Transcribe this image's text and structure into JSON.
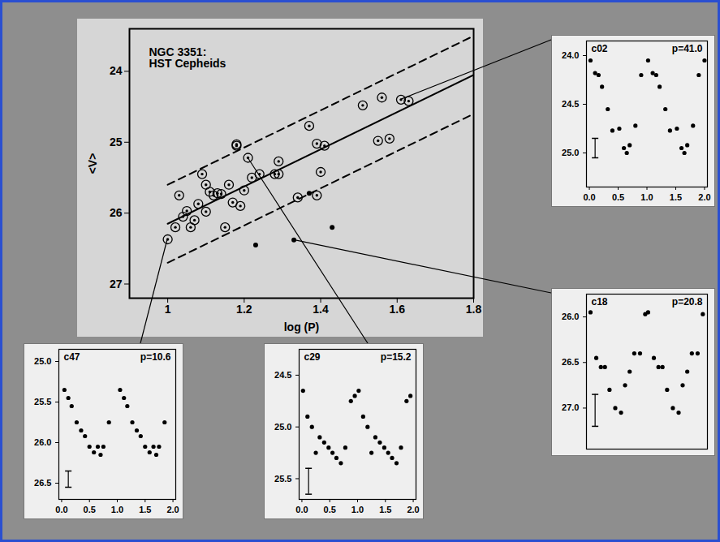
{
  "chart_data": [
    {
      "type": "scatter",
      "title": "NGC 3351: HST Cepheids",
      "x_label": "log (P)",
      "y_label": "<V>",
      "xlim": [
        0.9,
        1.8
      ],
      "xticks": [
        1,
        1.2,
        1.4,
        1.6,
        1.8
      ],
      "ylim": [
        27.2,
        23.4
      ],
      "yticks": [
        24,
        25,
        26,
        27
      ],
      "grid": false,
      "series": [
        {
          "type": "scatter",
          "marker": "circled",
          "color": "black",
          "x": [
            1.0,
            1.02,
            1.03,
            1.04,
            1.05,
            1.06,
            1.07,
            1.08,
            1.09,
            1.1,
            1.1,
            1.11,
            1.12,
            1.13,
            1.14,
            1.15,
            1.16,
            1.17,
            1.18,
            1.18,
            1.19,
            1.2,
            1.21,
            1.22,
            1.24,
            1.28,
            1.29,
            1.29,
            1.34,
            1.37,
            1.39,
            1.39,
            1.4,
            1.41,
            1.51,
            1.55,
            1.56,
            1.58,
            1.61,
            1.63
          ],
          "values": [
            26.37,
            26.2,
            25.75,
            26.05,
            25.97,
            26.2,
            26.1,
            25.87,
            25.45,
            25.6,
            25.98,
            25.7,
            25.75,
            25.72,
            25.73,
            26.2,
            25.6,
            25.85,
            25.03,
            25.05,
            25.9,
            25.68,
            25.22,
            25.5,
            25.45,
            25.45,
            25.27,
            25.45,
            25.78,
            24.77,
            25.75,
            25.02,
            25.42,
            25.05,
            24.48,
            24.98,
            24.37,
            24.95,
            24.4,
            24.42
          ]
        },
        {
          "type": "scatter",
          "marker": "dot",
          "color": "black",
          "x": [
            1.23,
            1.33,
            1.37,
            1.43
          ],
          "values": [
            26.45,
            26.38,
            25.72,
            26.2
          ]
        },
        {
          "type": "line",
          "line_style": "solid",
          "color": "black",
          "x": [
            1.0,
            1.8
          ],
          "values": [
            26.15,
            24.05
          ]
        },
        {
          "type": "line",
          "line_style": "dashed",
          "color": "black",
          "x": [
            1.0,
            1.8
          ],
          "values": [
            25.6,
            23.5
          ]
        },
        {
          "type": "line",
          "line_style": "dashed",
          "color": "black",
          "x": [
            1.0,
            1.8
          ],
          "values": [
            26.7,
            24.6
          ]
        }
      ]
    },
    {
      "type": "scatter",
      "title": "c02",
      "annotation": "p=41.0",
      "marker": "dot",
      "color": "black",
      "x": [
        0.02,
        0.1,
        0.16,
        0.22,
        0.32,
        0.4,
        0.52,
        0.6,
        0.65,
        0.7,
        0.8,
        0.9,
        1.02,
        1.1,
        1.16,
        1.22,
        1.32,
        1.4,
        1.52,
        1.6,
        1.65,
        1.7,
        1.8,
        1.9,
        2.0
      ],
      "values": [
        24.05,
        24.18,
        24.2,
        24.32,
        24.55,
        24.77,
        24.75,
        24.95,
        25.0,
        24.92,
        24.72,
        24.2,
        24.05,
        24.18,
        24.2,
        24.32,
        24.55,
        24.77,
        24.75,
        24.95,
        25.0,
        24.92,
        24.72,
        24.2,
        24.05
      ],
      "xlim": [
        -0.05,
        2.05
      ],
      "xticks": [
        {
          "value": 0,
          "label": "0.0"
        },
        0.5,
        {
          "value": 1,
          "label": "1.0"
        },
        1.5,
        {
          "value": 2,
          "label": "2.0"
        }
      ],
      "ylim": [
        25.35,
        23.85
      ],
      "yticks": [
        {
          "value": 24,
          "label": "24.0"
        },
        24.5,
        {
          "value": 25,
          "label": "25.0"
        }
      ],
      "error_bar": {
        "x": 0.1,
        "low": 24.85,
        "high": 25.05
      },
      "pl_point": {
        "x": 1.61,
        "y": 24.4
      }
    },
    {
      "type": "scatter",
      "title": "c18",
      "annotation": "p=20.8",
      "marker": "dot",
      "color": "black",
      "tick_labels": "y",
      "x": [
        0.02,
        0.12,
        0.2,
        0.27,
        0.35,
        0.45,
        0.55,
        0.62,
        0.7,
        0.78,
        0.88,
        0.97,
        1.02,
        1.12,
        1.2,
        1.27,
        1.35,
        1.45,
        1.55,
        1.62,
        1.7,
        1.78,
        1.88,
        1.97
      ],
      "values": [
        25.95,
        26.45,
        26.55,
        26.55,
        26.8,
        27.0,
        27.05,
        26.75,
        26.6,
        26.4,
        26.4,
        25.97,
        25.95,
        26.45,
        26.55,
        26.55,
        26.8,
        27.0,
        27.05,
        26.75,
        26.6,
        26.4,
        26.4,
        25.97
      ],
      "xlim": [
        -0.05,
        2.05
      ],
      "ylim": [
        27.45,
        25.75
      ],
      "yticks": [
        {
          "value": 26,
          "label": "26.0"
        },
        26.5,
        {
          "value": 27,
          "label": "27.0"
        }
      ],
      "error_bar": {
        "x": 0.1,
        "low": 26.85,
        "high": 27.2
      },
      "pl_point": {
        "x": 1.33,
        "y": 26.38
      }
    },
    {
      "type": "scatter",
      "title": "c47",
      "annotation": "p=10.6",
      "marker": "dot",
      "color": "black",
      "x": [
        0.05,
        0.12,
        0.18,
        0.27,
        0.35,
        0.42,
        0.5,
        0.58,
        0.65,
        0.7,
        0.75,
        0.85,
        1.05,
        1.12,
        1.18,
        1.27,
        1.35,
        1.42,
        1.5,
        1.58,
        1.65,
        1.7,
        1.75,
        1.85
      ],
      "values": [
        25.35,
        25.45,
        25.55,
        25.75,
        25.85,
        25.92,
        26.05,
        26.12,
        26.05,
        26.15,
        26.05,
        25.75,
        25.35,
        25.45,
        25.55,
        25.75,
        25.85,
        25.92,
        26.05,
        26.12,
        26.05,
        26.15,
        26.05,
        25.75
      ],
      "xlim": [
        -0.05,
        2.05
      ],
      "xticks": [
        {
          "value": 0,
          "label": "0.0"
        },
        0.5,
        {
          "value": 1,
          "label": "1.0"
        },
        1.5,
        {
          "value": 2,
          "label": "2.0"
        }
      ],
      "ylim": [
        26.7,
        24.85
      ],
      "yticks": [
        {
          "value": 25,
          "label": "25.0"
        },
        25.5,
        {
          "value": 26,
          "label": "26.0"
        },
        26.5
      ],
      "error_bar": {
        "x": 0.12,
        "low": 26.35,
        "high": 26.55
      },
      "pl_point": {
        "x": 1.0,
        "y": 26.37
      }
    },
    {
      "type": "scatter",
      "title": "c29",
      "annotation": "p=15.2",
      "marker": "dot",
      "color": "black",
      "x": [
        0.02,
        0.1,
        0.18,
        0.25,
        0.32,
        0.4,
        0.48,
        0.55,
        0.62,
        0.7,
        0.78,
        0.88,
        0.95,
        1.02,
        1.1,
        1.18,
        1.25,
        1.32,
        1.4,
        1.48,
        1.55,
        1.62,
        1.7,
        1.78,
        1.88,
        1.95
      ],
      "values": [
        24.65,
        24.9,
        25.0,
        25.25,
        25.1,
        25.15,
        25.2,
        25.25,
        25.3,
        25.35,
        25.2,
        24.75,
        24.7,
        24.65,
        24.9,
        25.0,
        25.25,
        25.1,
        25.15,
        25.2,
        25.25,
        25.3,
        25.35,
        25.2,
        24.75,
        24.7
      ],
      "xlim": [
        -0.05,
        2.05
      ],
      "xticks": [
        {
          "value": 0,
          "label": "0.0"
        },
        0.5,
        {
          "value": 1,
          "label": "1.0"
        },
        1.5,
        {
          "value": 2,
          "label": "2.0"
        }
      ],
      "ylim": [
        25.7,
        24.25
      ],
      "yticks": [
        24.5,
        {
          "value": 25,
          "label": "25.0"
        },
        25.5
      ],
      "error_bar": {
        "x": 0.12,
        "low": 25.4,
        "high": 25.65
      },
      "pl_point": {
        "x": 1.21,
        "y": 25.22
      }
    }
  ]
}
